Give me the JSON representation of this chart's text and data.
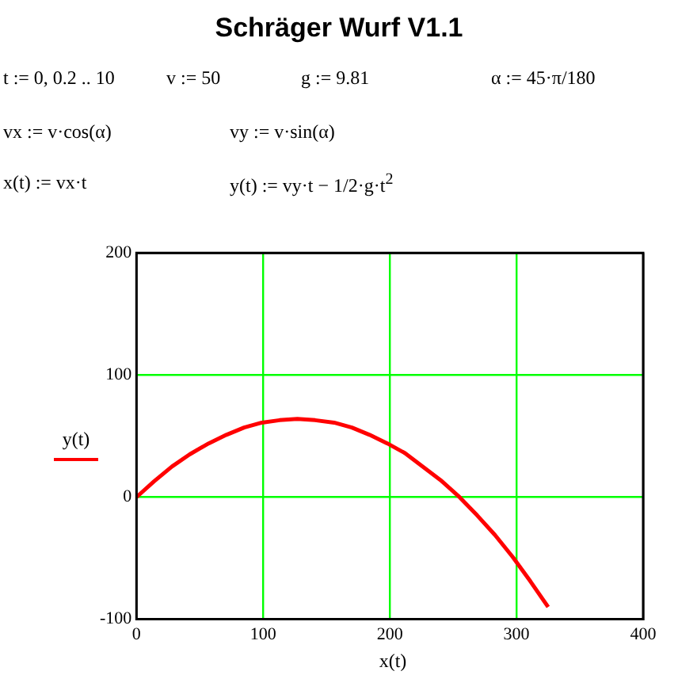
{
  "chart_data": {
    "type": "line",
    "title": "Schräger Wurf V1.1",
    "annotations": [
      "t := 0, 0.2 .. 10",
      "v := 50",
      "g := 9.81",
      "α := 45·π/180",
      "vx := v·cos(α)",
      "vy := v·sin(α)",
      "x(t) := vx·t",
      "y(t) := vy·t − 1/2·g·t$^{2}$"
    ],
    "xlabel": "x(t)",
    "series": [
      {
        "name": "y(t)",
        "color": "#ff0000",
        "x": [
          0,
          14,
          28,
          42,
          57,
          71,
          85,
          99,
          113,
          127,
          141,
          156,
          170,
          184,
          198,
          212,
          226,
          240,
          255,
          269,
          283,
          297,
          311,
          325
        ],
        "values": [
          0,
          13,
          25,
          35,
          44,
          51,
          57,
          61,
          63,
          64,
          63,
          61,
          57,
          51,
          44,
          36,
          25,
          14,
          0,
          -15,
          -31,
          -49,
          -69,
          -90
        ]
      }
    ],
    "xlim": [
      0,
      400
    ],
    "xticks": [
      0,
      100,
      200,
      300,
      400
    ],
    "ylim": [
      -100,
      200
    ],
    "yticks": [
      -100,
      0,
      100,
      200
    ],
    "grid": true,
    "legend": "left",
    "marker": "none",
    "line_style": "solid"
  }
}
